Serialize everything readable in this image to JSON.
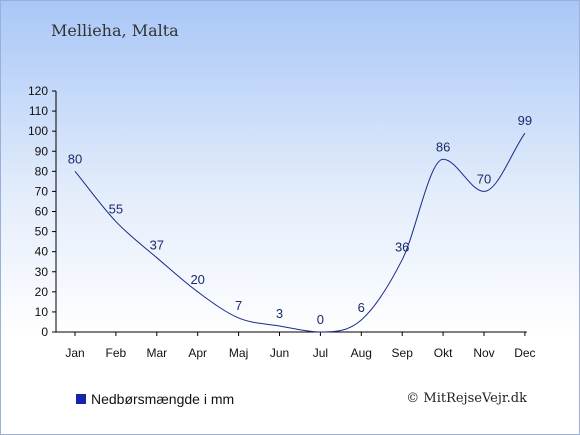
{
  "location": "Mellieha, Malta",
  "legend_label": "Nedbørsmængde i mm",
  "credit": "© MitRejseVejr.dk",
  "colors": {
    "line": "#1a2a8c",
    "swatch": "#1524a8",
    "axis": "#000000"
  },
  "chart_data": {
    "type": "line",
    "categories": [
      "Jan",
      "Feb",
      "Mar",
      "Apr",
      "Maj",
      "Jun",
      "Jul",
      "Aug",
      "Sep",
      "Okt",
      "Nov",
      "Dec"
    ],
    "series": [
      {
        "name": "Nedbørsmængde i mm",
        "values": [
          80,
          55,
          37,
          20,
          7,
          3,
          0,
          6,
          36,
          86,
          70,
          99
        ]
      }
    ],
    "ylim": [
      0,
      120
    ],
    "yticks": [
      0,
      10,
      20,
      30,
      40,
      50,
      60,
      70,
      80,
      90,
      100,
      110,
      120
    ],
    "smooth": true,
    "data_labels": true,
    "legend_position": "bottom-left",
    "grid": false
  }
}
